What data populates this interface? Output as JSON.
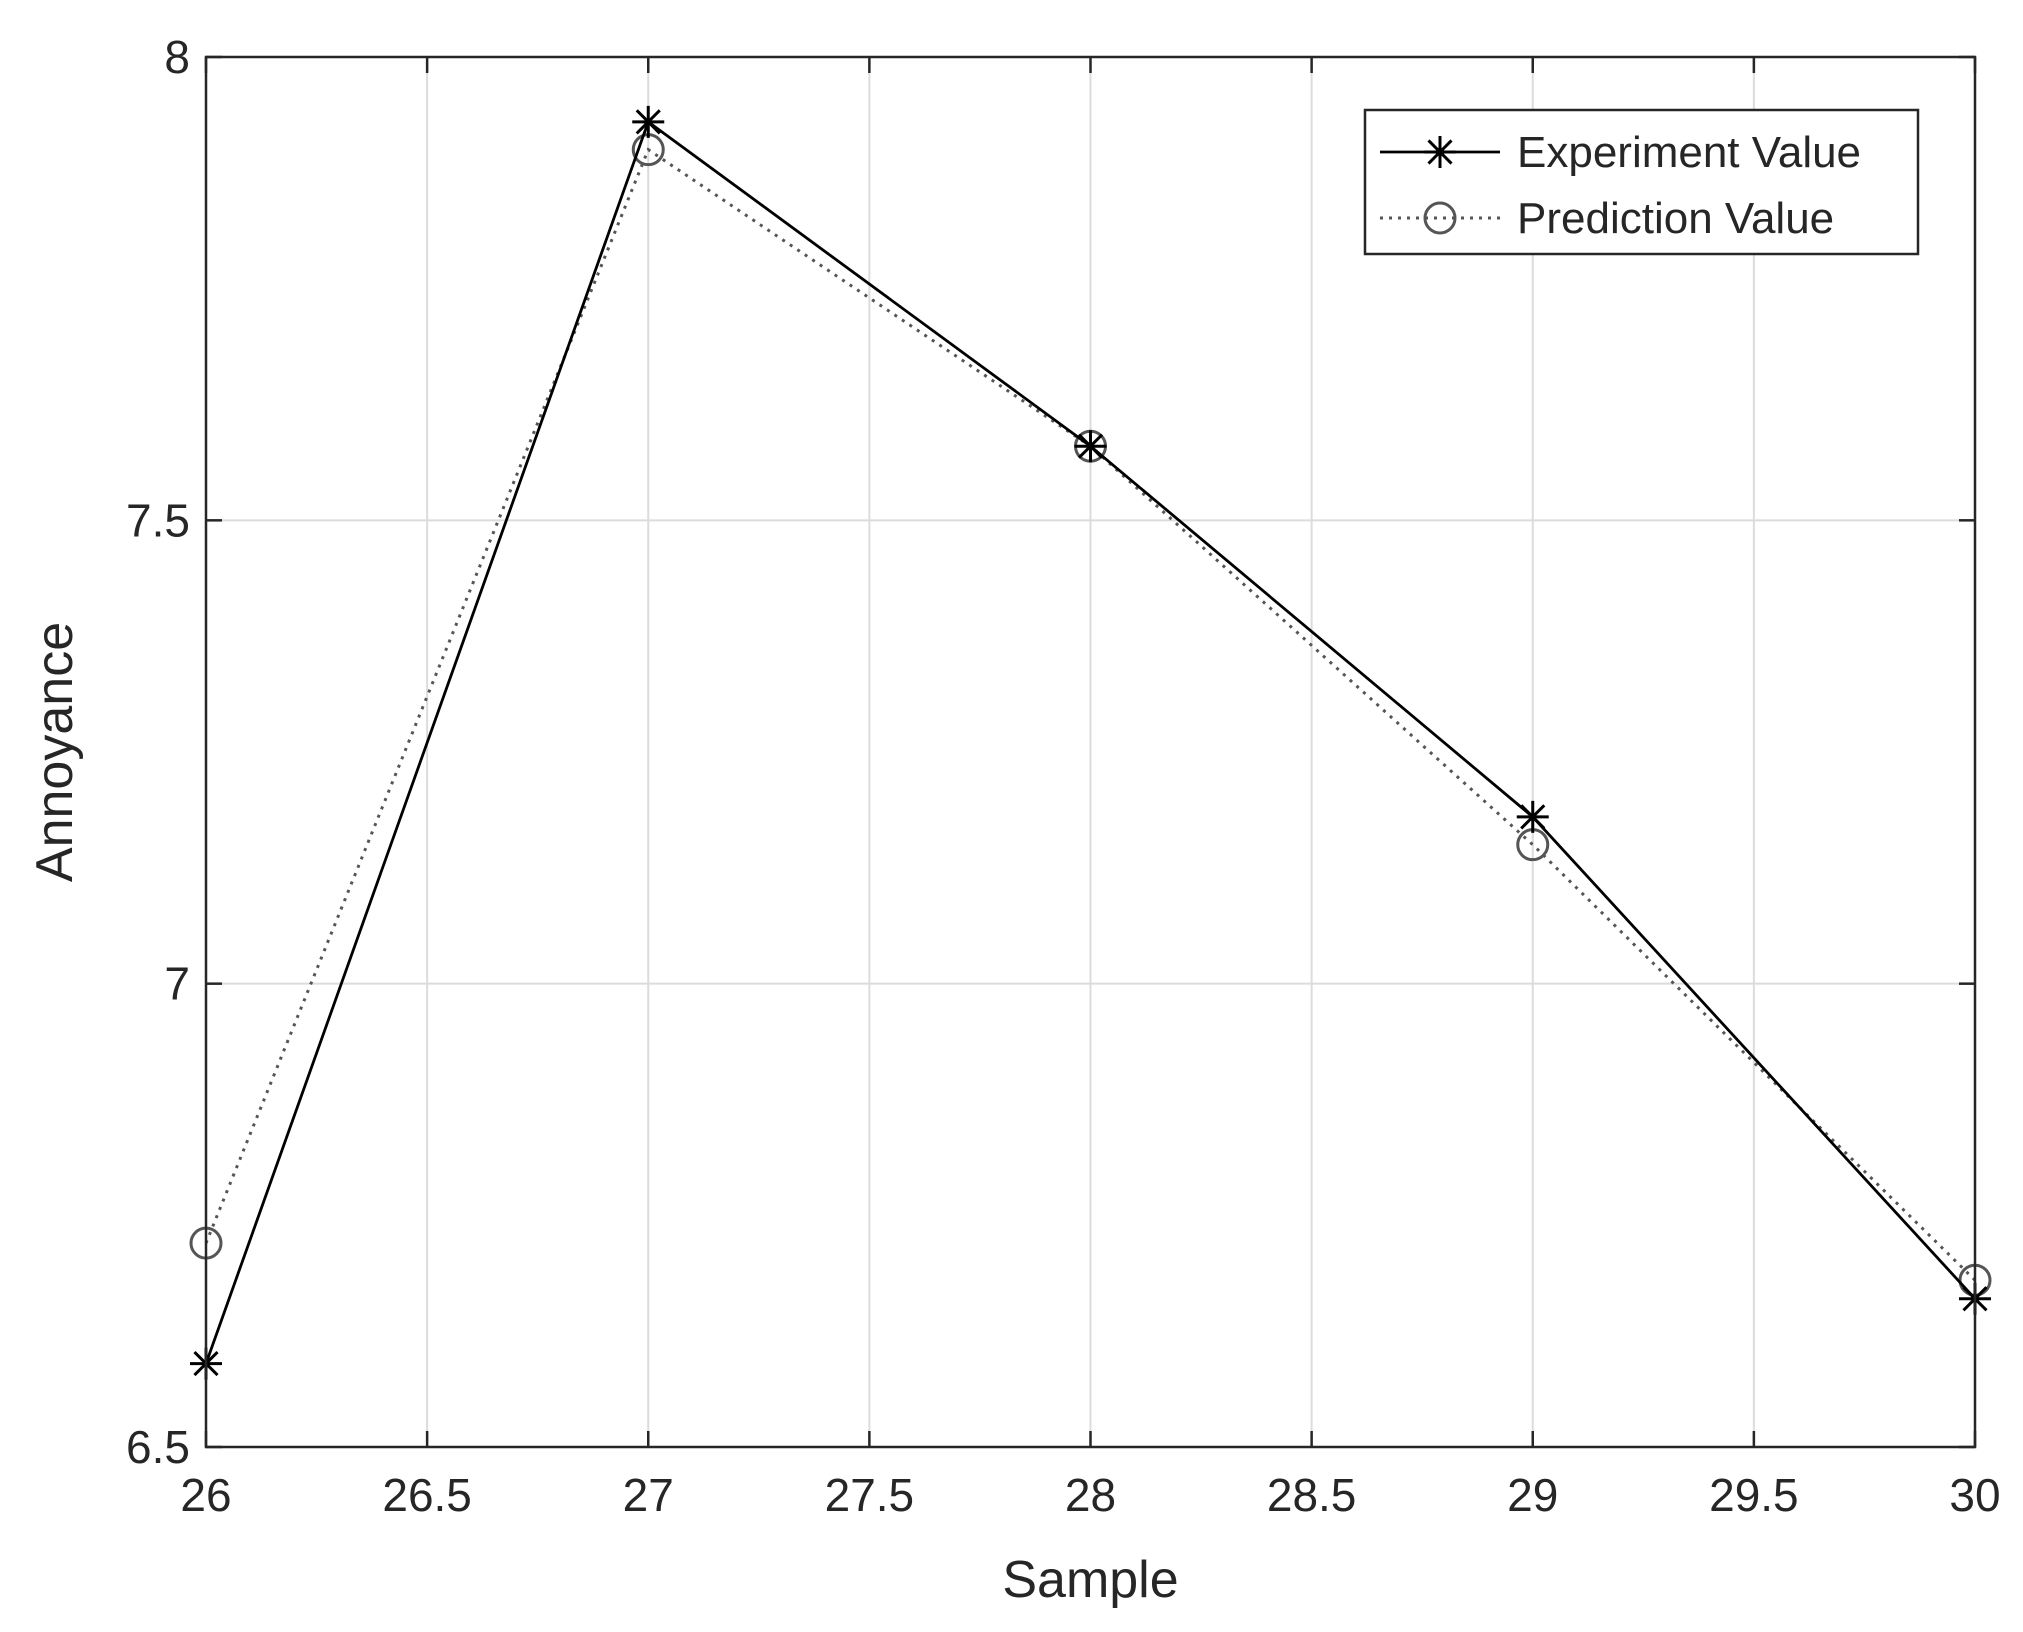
{
  "chart_data": {
    "type": "line",
    "title": "",
    "xlabel": "Sample",
    "ylabel": "Annoyance",
    "xlim": [
      26,
      30
    ],
    "ylim": [
      6.5,
      8
    ],
    "xticks": [
      "26",
      "26.5",
      "27",
      "27.5",
      "28",
      "28.5",
      "29",
      "29.5",
      "30"
    ],
    "yticks": [
      "6.5",
      "7",
      "7.5",
      "8"
    ],
    "grid": true,
    "legend_position": "top-right",
    "x": [
      26,
      27,
      28,
      29,
      30
    ],
    "series": [
      {
        "name": "Experiment Value",
        "values": [
          6.59,
          7.93,
          7.58,
          7.18,
          6.66
        ],
        "line_style": "solid",
        "marker": "asterisk",
        "color": "#000000"
      },
      {
        "name": "Prediction Value",
        "values": [
          6.72,
          7.9,
          7.58,
          7.15,
          6.68
        ],
        "line_style": "dotted",
        "marker": "circle",
        "color": "#555555"
      }
    ]
  }
}
